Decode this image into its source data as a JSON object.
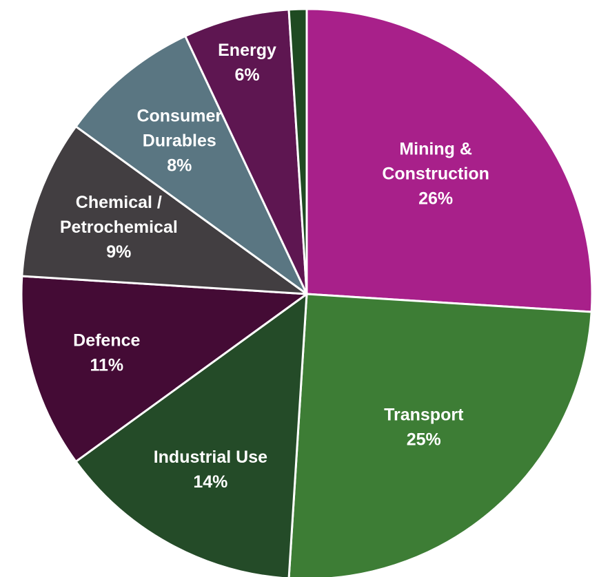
{
  "chart_data": {
    "type": "pie",
    "title": "",
    "legend": "none",
    "slices": [
      {
        "label_lines": [
          "Mining &",
          "Construction"
        ],
        "value_label": "26%",
        "value": 26,
        "color": "#a8208a"
      },
      {
        "label_lines": [
          "Transport"
        ],
        "value_label": "25%",
        "value": 25,
        "color": "#3d7d35"
      },
      {
        "label_lines": [
          "Industrial Use"
        ],
        "value_label": "14%",
        "value": 14,
        "color": "#244b28"
      },
      {
        "label_lines": [
          "Defence"
        ],
        "value_label": "11%",
        "value": 11,
        "color": "#440b35"
      },
      {
        "label_lines": [
          "Chemical /",
          "Petrochemical"
        ],
        "value_label": "9%",
        "value": 9,
        "color": "#423e41"
      },
      {
        "label_lines": [
          "Consumer",
          "Durables"
        ],
        "value_label": "8%",
        "value": 8,
        "color": "#5a7682"
      },
      {
        "label_lines": [
          "Energy"
        ],
        "value_label": "6%",
        "value": 6,
        "color": "#5e1651"
      },
      {
        "label_lines": [],
        "value_label": "",
        "value": 1,
        "color": "#1f4a22"
      }
    ]
  }
}
